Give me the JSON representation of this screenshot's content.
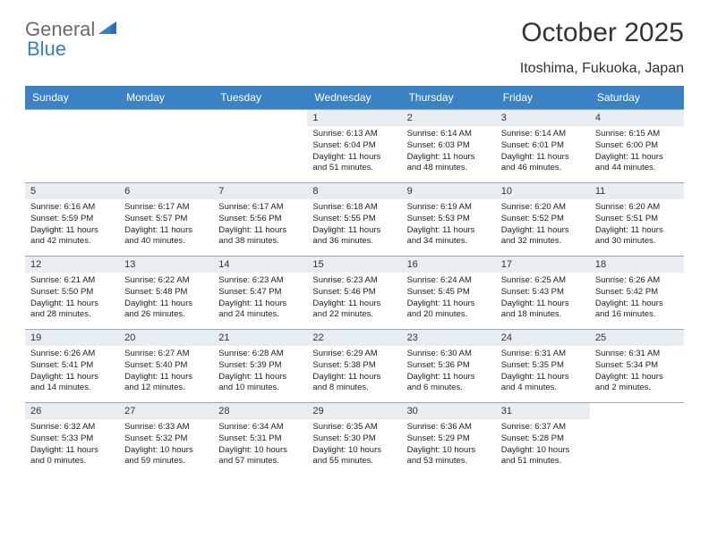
{
  "brand": {
    "part1": "General",
    "part2": "Blue"
  },
  "title": "October 2025",
  "subtitle": "Itoshima, Fukuoka, Japan",
  "colors": {
    "header_bg": "#3b82c4",
    "header_text": "#ffffff",
    "daynum_bg": "#e8edf1",
    "border": "#94a9bd",
    "text": "#333333"
  },
  "day_headers": [
    "Sunday",
    "Monday",
    "Tuesday",
    "Wednesday",
    "Thursday",
    "Friday",
    "Saturday"
  ],
  "weeks": [
    [
      {
        "n": "",
        "sr": "",
        "ss": "",
        "dl": ""
      },
      {
        "n": "",
        "sr": "",
        "ss": "",
        "dl": ""
      },
      {
        "n": "",
        "sr": "",
        "ss": "",
        "dl": ""
      },
      {
        "n": "1",
        "sr": "6:13 AM",
        "ss": "6:04 PM",
        "dl": "11 hours and 51 minutes."
      },
      {
        "n": "2",
        "sr": "6:14 AM",
        "ss": "6:03 PM",
        "dl": "11 hours and 48 minutes."
      },
      {
        "n": "3",
        "sr": "6:14 AM",
        "ss": "6:01 PM",
        "dl": "11 hours and 46 minutes."
      },
      {
        "n": "4",
        "sr": "6:15 AM",
        "ss": "6:00 PM",
        "dl": "11 hours and 44 minutes."
      }
    ],
    [
      {
        "n": "5",
        "sr": "6:16 AM",
        "ss": "5:59 PM",
        "dl": "11 hours and 42 minutes."
      },
      {
        "n": "6",
        "sr": "6:17 AM",
        "ss": "5:57 PM",
        "dl": "11 hours and 40 minutes."
      },
      {
        "n": "7",
        "sr": "6:17 AM",
        "ss": "5:56 PM",
        "dl": "11 hours and 38 minutes."
      },
      {
        "n": "8",
        "sr": "6:18 AM",
        "ss": "5:55 PM",
        "dl": "11 hours and 36 minutes."
      },
      {
        "n": "9",
        "sr": "6:19 AM",
        "ss": "5:53 PM",
        "dl": "11 hours and 34 minutes."
      },
      {
        "n": "10",
        "sr": "6:20 AM",
        "ss": "5:52 PM",
        "dl": "11 hours and 32 minutes."
      },
      {
        "n": "11",
        "sr": "6:20 AM",
        "ss": "5:51 PM",
        "dl": "11 hours and 30 minutes."
      }
    ],
    [
      {
        "n": "12",
        "sr": "6:21 AM",
        "ss": "5:50 PM",
        "dl": "11 hours and 28 minutes."
      },
      {
        "n": "13",
        "sr": "6:22 AM",
        "ss": "5:48 PM",
        "dl": "11 hours and 26 minutes."
      },
      {
        "n": "14",
        "sr": "6:23 AM",
        "ss": "5:47 PM",
        "dl": "11 hours and 24 minutes."
      },
      {
        "n": "15",
        "sr": "6:23 AM",
        "ss": "5:46 PM",
        "dl": "11 hours and 22 minutes."
      },
      {
        "n": "16",
        "sr": "6:24 AM",
        "ss": "5:45 PM",
        "dl": "11 hours and 20 minutes."
      },
      {
        "n": "17",
        "sr": "6:25 AM",
        "ss": "5:43 PM",
        "dl": "11 hours and 18 minutes."
      },
      {
        "n": "18",
        "sr": "6:26 AM",
        "ss": "5:42 PM",
        "dl": "11 hours and 16 minutes."
      }
    ],
    [
      {
        "n": "19",
        "sr": "6:26 AM",
        "ss": "5:41 PM",
        "dl": "11 hours and 14 minutes."
      },
      {
        "n": "20",
        "sr": "6:27 AM",
        "ss": "5:40 PM",
        "dl": "11 hours and 12 minutes."
      },
      {
        "n": "21",
        "sr": "6:28 AM",
        "ss": "5:39 PM",
        "dl": "11 hours and 10 minutes."
      },
      {
        "n": "22",
        "sr": "6:29 AM",
        "ss": "5:38 PM",
        "dl": "11 hours and 8 minutes."
      },
      {
        "n": "23",
        "sr": "6:30 AM",
        "ss": "5:36 PM",
        "dl": "11 hours and 6 minutes."
      },
      {
        "n": "24",
        "sr": "6:31 AM",
        "ss": "5:35 PM",
        "dl": "11 hours and 4 minutes."
      },
      {
        "n": "25",
        "sr": "6:31 AM",
        "ss": "5:34 PM",
        "dl": "11 hours and 2 minutes."
      }
    ],
    [
      {
        "n": "26",
        "sr": "6:32 AM",
        "ss": "5:33 PM",
        "dl": "11 hours and 0 minutes."
      },
      {
        "n": "27",
        "sr": "6:33 AM",
        "ss": "5:32 PM",
        "dl": "10 hours and 59 minutes."
      },
      {
        "n": "28",
        "sr": "6:34 AM",
        "ss": "5:31 PM",
        "dl": "10 hours and 57 minutes."
      },
      {
        "n": "29",
        "sr": "6:35 AM",
        "ss": "5:30 PM",
        "dl": "10 hours and 55 minutes."
      },
      {
        "n": "30",
        "sr": "6:36 AM",
        "ss": "5:29 PM",
        "dl": "10 hours and 53 minutes."
      },
      {
        "n": "31",
        "sr": "6:37 AM",
        "ss": "5:28 PM",
        "dl": "10 hours and 51 minutes."
      },
      {
        "n": "",
        "sr": "",
        "ss": "",
        "dl": ""
      }
    ]
  ],
  "labels": {
    "sunrise": "Sunrise:",
    "sunset": "Sunset:",
    "daylight": "Daylight:"
  }
}
